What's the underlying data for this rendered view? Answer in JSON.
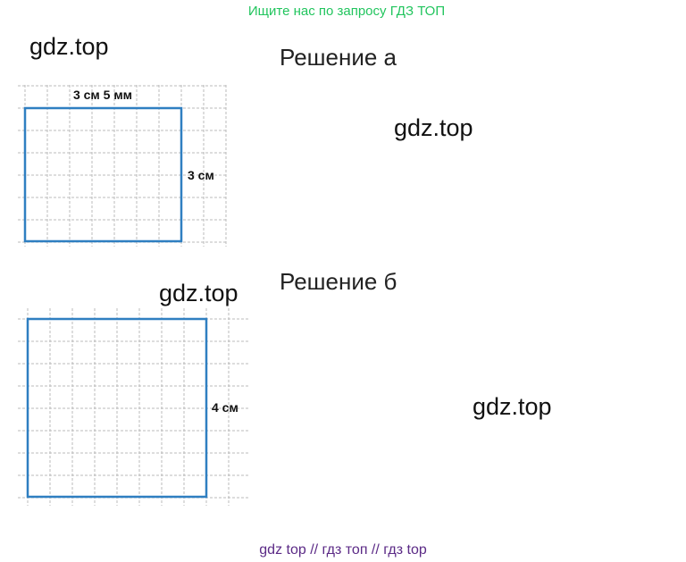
{
  "header": {
    "text": "Ищите нас по запросу ГДЗ ТОП"
  },
  "watermarks": [
    "gdz.top",
    "gdz.top",
    "gdz.top",
    "gdz.top"
  ],
  "solutions": [
    {
      "title": "Решение а",
      "width_label": "3 см 5 мм",
      "height_label": "3 см"
    },
    {
      "title": "Решение б",
      "height_label": "4 см"
    }
  ],
  "footer": {
    "text": "gdz top  //  гдз топ  //  гдз top"
  }
}
